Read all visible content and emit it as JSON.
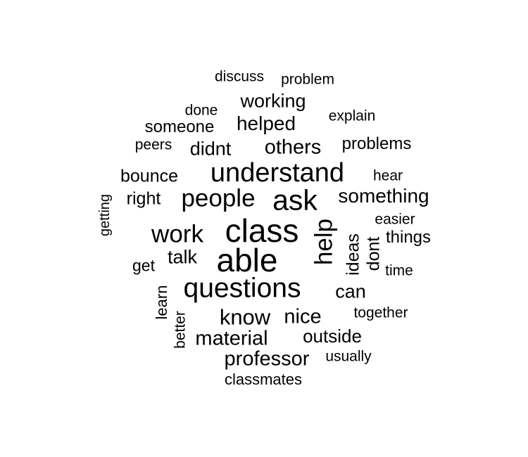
{
  "words": [
    {
      "text": "discuss"
    },
    {
      "text": "problem"
    },
    {
      "text": "working"
    },
    {
      "text": "done"
    },
    {
      "text": "explain"
    },
    {
      "text": "someone"
    },
    {
      "text": "helped"
    },
    {
      "text": "peers"
    },
    {
      "text": "didnt"
    },
    {
      "text": "others"
    },
    {
      "text": "problems"
    },
    {
      "text": "bounce"
    },
    {
      "text": "understand"
    },
    {
      "text": "hear"
    },
    {
      "text": "right"
    },
    {
      "text": "people"
    },
    {
      "text": "ask"
    },
    {
      "text": "something"
    },
    {
      "text": "getting"
    },
    {
      "text": "easier"
    },
    {
      "text": "work"
    },
    {
      "text": "class"
    },
    {
      "text": "help"
    },
    {
      "text": "things"
    },
    {
      "text": "talk"
    },
    {
      "text": "ideas"
    },
    {
      "text": "dont"
    },
    {
      "text": "get"
    },
    {
      "text": "able"
    },
    {
      "text": "time"
    },
    {
      "text": "questions"
    },
    {
      "text": "can"
    },
    {
      "text": "learn"
    },
    {
      "text": "together"
    },
    {
      "text": "know"
    },
    {
      "text": "nice"
    },
    {
      "text": "better"
    },
    {
      "text": "material"
    },
    {
      "text": "outside"
    },
    {
      "text": "professor"
    },
    {
      "text": "usually"
    },
    {
      "text": "classmates"
    }
  ]
}
